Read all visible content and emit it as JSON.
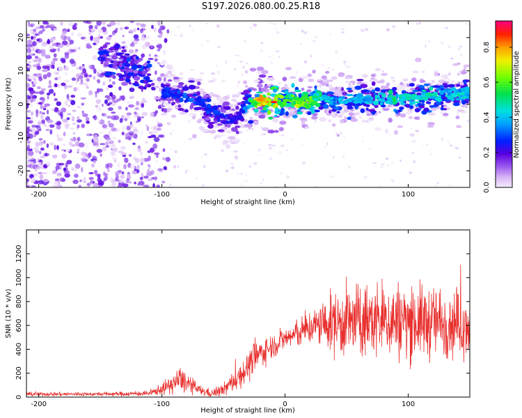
{
  "title": "S197.2026.080.00.25.R18",
  "chart_data": [
    {
      "type": "heatmap",
      "title": "S197.2026.080.00.25.R18",
      "xlabel": "Height of straight line (km)",
      "ylabel": "Frequency (Hz)",
      "xlim": [
        -210,
        150
      ],
      "ylim": [
        -25,
        25
      ],
      "xticks": [
        -200,
        -100,
        0,
        100
      ],
      "xtick_labels": [
        "-200",
        "-100",
        "0",
        "100"
      ],
      "yticks": [
        -20,
        -10,
        0,
        10,
        20
      ],
      "ytick_labels": [
        "-20",
        "-10",
        "0",
        "10",
        "20"
      ],
      "colorbar": {
        "label": "Normalized spectral amplitude",
        "range": [
          0.0,
          0.95
        ],
        "ticks": [
          0.0,
          0.2,
          0.4,
          0.6,
          0.8
        ],
        "tick_labels": [
          "0.0",
          "0.2",
          "0.4",
          "0.6",
          "0.8"
        ]
      },
      "ridge": {
        "x": [
          -100,
          -90,
          -80,
          -70,
          -60,
          -50,
          -40,
          -35,
          -30,
          -20,
          -10,
          0,
          10,
          20,
          30,
          40,
          50,
          60,
          70,
          80,
          90,
          100,
          110,
          120,
          130,
          140,
          150
        ],
        "freq": [
          4,
          3,
          2,
          1,
          -2,
          -4,
          -5,
          -2,
          0,
          1,
          1,
          1,
          1,
          1,
          2,
          1,
          1,
          2,
          1,
          2,
          1,
          2,
          2,
          3,
          3,
          3,
          3
        ],
        "amplitude": [
          0.3,
          0.3,
          0.35,
          0.3,
          0.3,
          0.3,
          0.25,
          0.3,
          0.5,
          0.9,
          0.95,
          0.6,
          0.75,
          0.7,
          0.5,
          0.4,
          0.45,
          0.45,
          0.45,
          0.5,
          0.55,
          0.5,
          0.5,
          0.5,
          0.45,
          0.5,
          0.45
        ]
      },
      "ridge_early": {
        "x": [
          -150,
          -140,
          -130,
          -120,
          -110
        ],
        "freq": [
          14,
          13,
          12,
          10,
          8
        ]
      }
    },
    {
      "type": "line",
      "xlabel": "Height of straight line (km)",
      "ylabel": "SNR (10 * v/v)",
      "xlim": [
        -210,
        150
      ],
      "ylim": [
        0,
        1400
      ],
      "xticks": [
        -200,
        -100,
        0,
        100
      ],
      "xtick_labels": [
        "-200",
        "-100",
        "0",
        "100"
      ],
      "yticks": [
        0,
        200,
        400,
        600,
        800,
        1000,
        1200
      ],
      "ytick_labels": [
        "0",
        "200",
        "400",
        "600",
        "800",
        "1000",
        "1200"
      ],
      "series": [
        {
          "name": "SNR",
          "color": "#e8302e",
          "envelope_x": [
            -210,
            -150,
            -110,
            -95,
            -85,
            -70,
            -60,
            -50,
            -40,
            -30,
            -25,
            -20,
            -10,
            0,
            10,
            20,
            30,
            40,
            50,
            60,
            70,
            80,
            90,
            100,
            110,
            120,
            130,
            140,
            150
          ],
          "envelope_mean": [
            25,
            25,
            30,
            90,
            150,
            60,
            30,
            60,
            150,
            250,
            330,
            370,
            430,
            490,
            530,
            580,
            610,
            620,
            630,
            630,
            640,
            650,
            640,
            640,
            630,
            630,
            630,
            620,
            620
          ],
          "envelope_spread": [
            15,
            15,
            20,
            60,
            100,
            40,
            30,
            50,
            90,
            110,
            130,
            110,
            90,
            90,
            110,
            130,
            170,
            250,
            280,
            280,
            290,
            300,
            300,
            290,
            280,
            280,
            270,
            260,
            250
          ]
        }
      ]
    }
  ]
}
